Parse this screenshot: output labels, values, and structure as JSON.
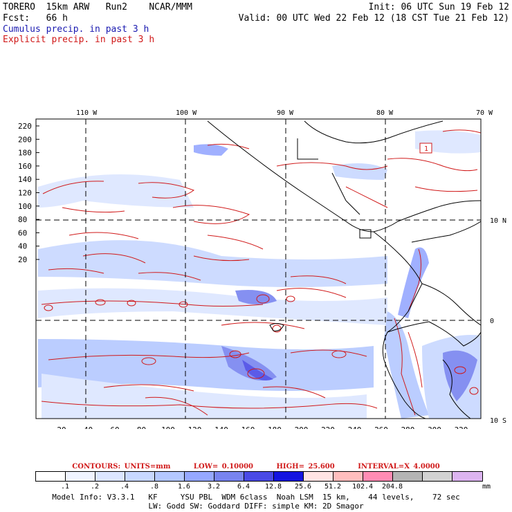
{
  "header": {
    "line1_left": "TORERO  15km ARW   Run2    NCAR/MMM",
    "line1_right": "Init: 06 UTC Sun 19 Feb 12",
    "line2_left": "Fcst:   66 h",
    "line2_right": "Valid: 00 UTC Wed 22 Feb 12 (18 CST Tue 21 Feb 12)",
    "cumulus": "Cumulus precip. in past 3 h",
    "explicit": "Explicit precip. in past 3 h"
  },
  "map": {
    "lon_labels": [
      "110 W",
      "100 W",
      "90 W",
      "80 W",
      "70 W"
    ],
    "lat_labels": [
      "10 N",
      "0",
      "10 S"
    ],
    "y_ticks": [
      "220",
      "200",
      "180",
      "160",
      "140",
      "120",
      "100",
      "80",
      "60",
      "40",
      "20"
    ],
    "x_ticks": [
      "20",
      "40",
      "60",
      "80",
      "100",
      "120",
      "140",
      "160",
      "180",
      "200",
      "220",
      "240",
      "260",
      "280",
      "300",
      "320"
    ],
    "box_label": "1"
  },
  "contours": {
    "units": "CONTOURS:  UNITS=mm",
    "low": "LOW=  0.10000",
    "high": "HIGH=  25.600",
    "interval": "INTERVAL=X  4.0000"
  },
  "colorbar": {
    "colors": [
      "#ffffff",
      "#f0f4ff",
      "#dce6ff",
      "#c8d8ff",
      "#b4c8ff",
      "#96a8ff",
      "#7884f0",
      "#4a4ae6",
      "#1414e0",
      "#ffe4e4",
      "#ffbebe",
      "#ff8cb4",
      "#b4b4b4",
      "#d2d2d2",
      "#dcb4f0"
    ],
    "labels": [
      ".1",
      ".2",
      ".4",
      ".8",
      "1.6",
      "3.2",
      "6.4",
      "12.8",
      "25.6",
      "51.2",
      "102.4",
      "204.8"
    ],
    "unit": "mm"
  },
  "footer": {
    "line1": "Model Info: V3.3.1   KF     YSU PBL  WDM 6class  Noah LSM  15 km,    44 levels,    72 sec",
    "line2": "LW: Godd SW: Goddard DIFF: simple KM: 2D Smagor"
  }
}
